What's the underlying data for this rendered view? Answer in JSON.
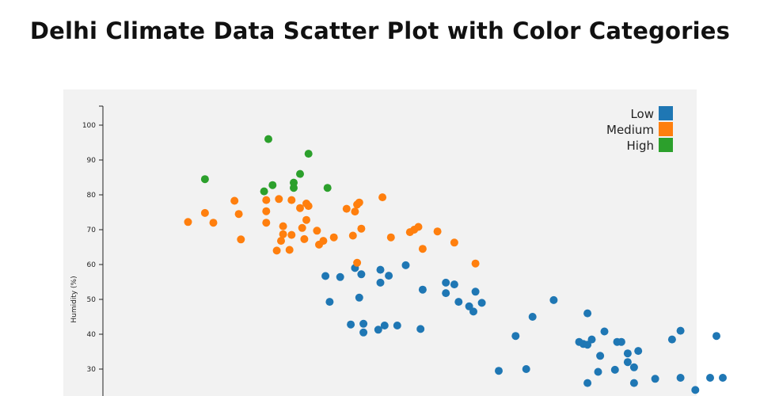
{
  "chart_data": {
    "type": "scatter",
    "title": "Delhi Climate Data Scatter Plot with Color Categories",
    "xlabel": "",
    "ylabel": "Humidity (%)",
    "ylim": [
      20,
      104
    ],
    "yticks": [
      30,
      40,
      50,
      60,
      70,
      80,
      90,
      100
    ],
    "legend_position": "top-right",
    "series": [
      {
        "name": "Low",
        "color": "#1f77b4",
        "points": [
          [
            9.8,
            56.7
          ],
          [
            10.0,
            49.3
          ],
          [
            10.5,
            56.4
          ],
          [
            11.0,
            42.8
          ],
          [
            11.2,
            59.0
          ],
          [
            11.4,
            50.5
          ],
          [
            11.5,
            57.2
          ],
          [
            11.6,
            40.5
          ],
          [
            11.6,
            43.0
          ],
          [
            12.3,
            41.3
          ],
          [
            12.4,
            58.5
          ],
          [
            12.4,
            54.8
          ],
          [
            12.6,
            42.5
          ],
          [
            12.8,
            56.8
          ],
          [
            13.2,
            42.5
          ],
          [
            13.6,
            59.8
          ],
          [
            14.3,
            41.5
          ],
          [
            14.4,
            52.8
          ],
          [
            15.5,
            51.8
          ],
          [
            15.5,
            54.8
          ],
          [
            15.9,
            54.3
          ],
          [
            16.1,
            49.3
          ],
          [
            16.6,
            48.0
          ],
          [
            16.8,
            46.5
          ],
          [
            16.9,
            52.2
          ],
          [
            17.2,
            49.0
          ],
          [
            18.0,
            29.5
          ],
          [
            18.8,
            39.5
          ],
          [
            19.3,
            30.0
          ],
          [
            19.6,
            45.0
          ],
          [
            20.6,
            49.8
          ],
          [
            21.8,
            37.8
          ],
          [
            22.0,
            37.2
          ],
          [
            22.2,
            26.0
          ],
          [
            22.2,
            37.0
          ],
          [
            22.2,
            46.0
          ],
          [
            22.4,
            38.5
          ],
          [
            22.7,
            29.2
          ],
          [
            22.8,
            33.8
          ],
          [
            23.0,
            40.8
          ],
          [
            23.5,
            29.8
          ],
          [
            23.6,
            37.8
          ],
          [
            23.8,
            37.8
          ],
          [
            24.1,
            34.5
          ],
          [
            24.1,
            32.0
          ],
          [
            24.4,
            30.5
          ],
          [
            24.4,
            26.0
          ],
          [
            24.6,
            35.2
          ],
          [
            25.4,
            27.2
          ],
          [
            26.2,
            38.5
          ],
          [
            26.6,
            41.0
          ],
          [
            26.6,
            27.5
          ],
          [
            27.3,
            24.0
          ],
          [
            28.0,
            27.5
          ],
          [
            28.3,
            39.5
          ],
          [
            28.6,
            27.5
          ]
        ]
      },
      {
        "name": "Medium",
        "color": "#ff7f0e",
        "points": [
          [
            3.3,
            72.2
          ],
          [
            4.1,
            74.8
          ],
          [
            4.5,
            72.0
          ],
          [
            5.5,
            78.3
          ],
          [
            5.7,
            74.5
          ],
          [
            5.8,
            67.2
          ],
          [
            7.0,
            78.5
          ],
          [
            7.0,
            75.3
          ],
          [
            7.0,
            72.0
          ],
          [
            7.5,
            64.0
          ],
          [
            7.6,
            78.8
          ],
          [
            7.7,
            66.8
          ],
          [
            7.8,
            68.7
          ],
          [
            7.8,
            71.0
          ],
          [
            8.1,
            64.2
          ],
          [
            8.2,
            68.5
          ],
          [
            8.2,
            78.5
          ],
          [
            8.6,
            76.2
          ],
          [
            8.7,
            70.5
          ],
          [
            8.8,
            67.3
          ],
          [
            8.9,
            77.5
          ],
          [
            8.9,
            72.8
          ],
          [
            9.0,
            76.8
          ],
          [
            9.4,
            69.7
          ],
          [
            9.5,
            65.7
          ],
          [
            9.7,
            66.8
          ],
          [
            10.2,
            67.8
          ],
          [
            10.8,
            76.0
          ],
          [
            11.1,
            68.3
          ],
          [
            11.2,
            75.2
          ],
          [
            11.3,
            60.5
          ],
          [
            11.3,
            77.2
          ],
          [
            11.4,
            77.8
          ],
          [
            11.5,
            70.3
          ],
          [
            12.5,
            79.3
          ],
          [
            12.9,
            67.8
          ],
          [
            13.8,
            69.3
          ],
          [
            14.0,
            70.0
          ],
          [
            14.2,
            70.8
          ],
          [
            14.4,
            64.5
          ],
          [
            15.1,
            69.5
          ],
          [
            15.9,
            66.3
          ],
          [
            16.9,
            60.3
          ]
        ]
      },
      {
        "name": "High",
        "color": "#2ca02c",
        "points": [
          [
            4.1,
            84.5
          ],
          [
            6.9,
            81.0
          ],
          [
            7.1,
            96.0
          ],
          [
            7.3,
            82.8
          ],
          [
            8.3,
            82.0
          ],
          [
            8.3,
            83.5
          ],
          [
            8.6,
            86.0
          ],
          [
            9.0,
            91.8
          ],
          [
            9.9,
            82.0
          ]
        ]
      }
    ]
  }
}
